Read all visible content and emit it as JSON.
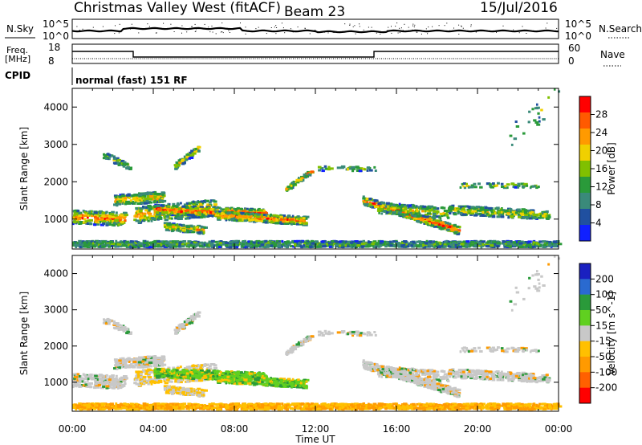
{
  "header": {
    "title": "Christmas Valley West (fitACF)",
    "beam": "Beam 23",
    "date": "15/Jul/2016"
  },
  "top_panels": {
    "nsky_label": "N.Sky",
    "nsky_ticks": [
      "10^5",
      "10^0"
    ],
    "nsearch_label": "N.Search",
    "nsearch_ticks": [
      "10^5",
      "10^0"
    ],
    "freq_label_1": "Freq.",
    "freq_label_2": "[MHz]",
    "freq_ticks": [
      "18",
      "8"
    ],
    "nave_label": "Nave",
    "nave_ticks": [
      "60",
      "0"
    ],
    "cpid_label": "CPID",
    "cpid_text": "normal (fast) 151 RF"
  },
  "chart_data": [
    {
      "type": "heatmap",
      "quantity": "power",
      "ylabel": "Slant Range [km]",
      "ylim": [
        200,
        4500
      ],
      "yticks": [
        1000,
        2000,
        3000,
        4000
      ],
      "colorbar_label": "Power [dB]",
      "colorbar_ticks": [
        "28",
        "24",
        "20",
        "16",
        "12",
        "8",
        "4"
      ],
      "colorbar_colors": [
        "#ff0000",
        "#ff5a00",
        "#ff9a00",
        "#f0d000",
        "#80c000",
        "#2a9a3a",
        "#3a8a7a",
        "#2050a0",
        "#1020ff"
      ]
    },
    {
      "type": "heatmap",
      "quantity": "velocity",
      "ylabel": "Slant Range [km]",
      "ylim": [
        200,
        4500
      ],
      "yticks": [
        1000,
        2000,
        3000,
        4000
      ],
      "colorbar_label": "Velocity [m s^-1]",
      "colorbar_ticks": [
        "200",
        "100",
        "50",
        "15",
        "-15",
        "-50",
        "-100",
        "-200"
      ],
      "colorbar_colors": [
        "#1a20c0",
        "#2a6ad0",
        "#2a9a3a",
        "#60d020",
        "#c8c8c8",
        "#ffc000",
        "#ff9a00",
        "#ff6000",
        "#ff0000"
      ]
    }
  ],
  "x_axis": {
    "label": "Time UT",
    "ticks": [
      "00:00",
      "04:00",
      "08:00",
      "12:00",
      "16:00",
      "20:00",
      "00:00"
    ]
  }
}
